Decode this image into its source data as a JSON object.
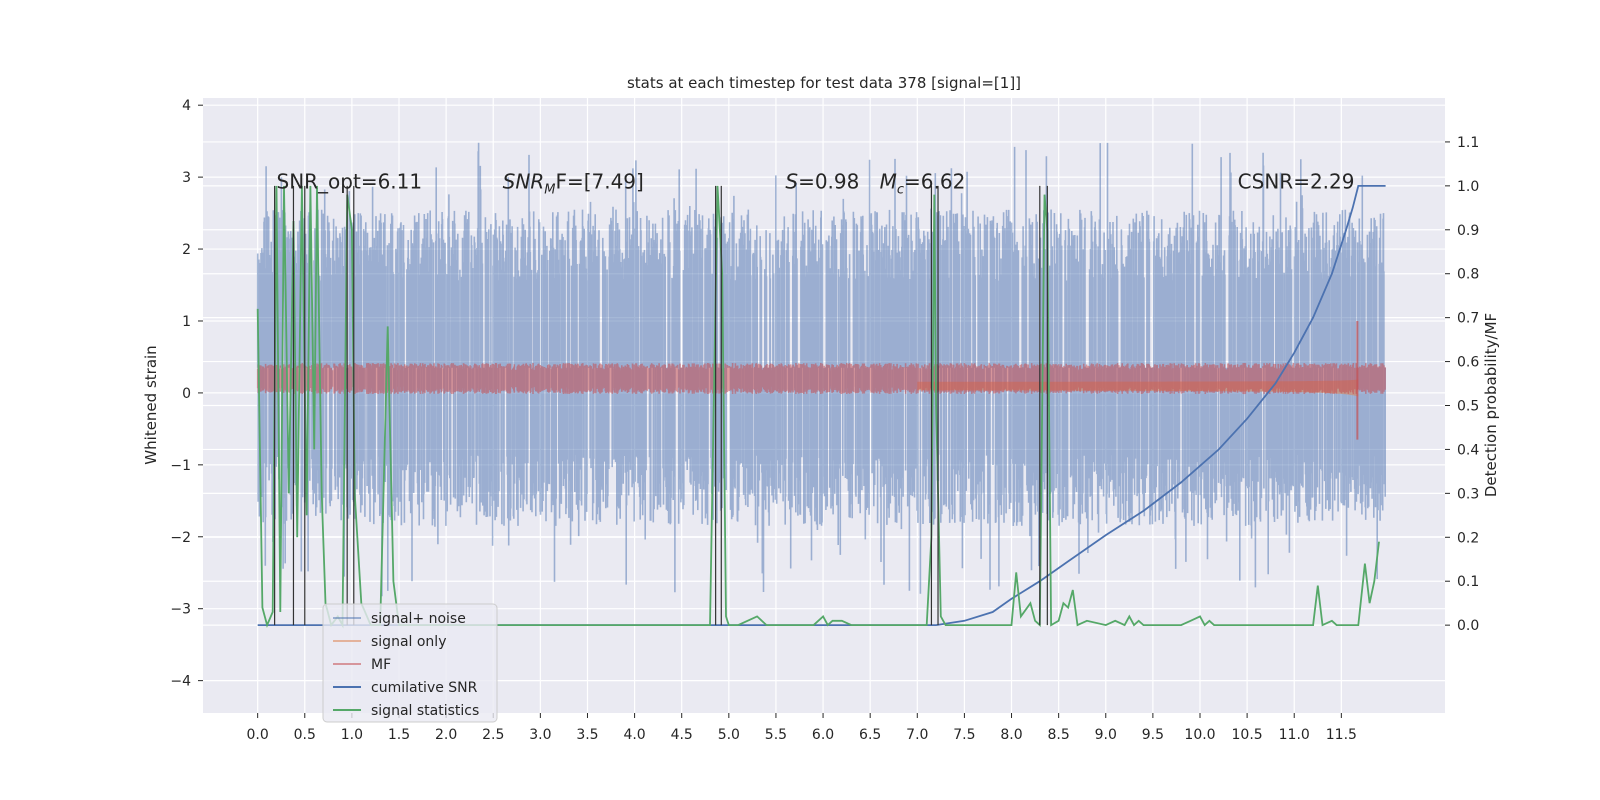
{
  "chart_data": {
    "type": "line",
    "title": "stats at each timestep for test data 378 [signal=[1]]",
    "ylabel": "Whitened strain",
    "ylabel_right": "Detection probability/MF",
    "xlim": [
      -0.58,
      12.6
    ],
    "ylim": [
      -4.45,
      4.1
    ],
    "ylim_right": [
      -0.2,
      1.2
    ],
    "xticks": [
      0.0,
      0.5,
      1.0,
      1.5,
      2.0,
      2.5,
      3.0,
      3.5,
      4.0,
      4.5,
      5.0,
      5.5,
      6.0,
      6.5,
      7.0,
      7.5,
      8.0,
      8.5,
      9.0,
      9.5,
      10.0,
      10.5,
      11.0,
      11.5
    ],
    "xtick_labels": [
      "0.0",
      "0.5",
      "1.0",
      "1.5",
      "2.0",
      "2.5",
      "3.0",
      "3.5",
      "4.0",
      "4.5",
      "5.0",
      "5.5",
      "6.0",
      "6.5",
      "7.0",
      "7.5",
      "8.0",
      "8.5",
      "9.0",
      "9.5",
      "10.0",
      "10.5",
      "11.0",
      "11.5"
    ],
    "yticks": [
      -4,
      -3,
      -2,
      -1,
      0,
      1,
      2,
      3,
      4
    ],
    "ytick_labels": [
      "−4",
      "−3",
      "−2",
      "−1",
      "0",
      "1",
      "2",
      "3",
      "4"
    ],
    "yticks_right": [
      0.0,
      0.1,
      0.2,
      0.3,
      0.4,
      0.5,
      0.6,
      0.7,
      0.8,
      0.9,
      1.0,
      1.1
    ],
    "ytick_labels_right": [
      "0.0",
      "0.1",
      "0.2",
      "0.3",
      "0.4",
      "0.5",
      "0.6",
      "0.7",
      "0.8",
      "0.9",
      "1.0",
      "1.1"
    ],
    "grid": true,
    "legend_position": "lower-left",
    "annotations": [
      {
        "x": 0.2,
        "y": 2.95,
        "text": "SNR_opt=6.11"
      },
      {
        "x": 2.6,
        "y": 2.95,
        "text": "SNR",
        "sub": "M",
        "rest": "F=[7.49]"
      },
      {
        "x": 5.6,
        "y": 2.95,
        "text": "S",
        "rest": "=0.98"
      },
      {
        "x": 6.6,
        "y": 2.95,
        "text": "M",
        "sub": "c",
        "rest": "=6.62"
      },
      {
        "x": 10.4,
        "y": 2.95,
        "text": "CSNR=2.29"
      }
    ],
    "series": [
      {
        "name": "signal+ noise",
        "color": "#4c72b0",
        "opacity": 0.5,
        "kind": "noise",
        "envelope": 2.2,
        "x_range": [
          0.0,
          11.97
        ]
      },
      {
        "name": "signal only",
        "color": "#dd8452",
        "opacity": 0.55,
        "kind": "chirp",
        "x_range": [
          0.0,
          11.68
        ]
      },
      {
        "name": "MF",
        "color": "#c44e52",
        "opacity": 0.55,
        "kind": "band",
        "center": 0.2,
        "halfwidth": 0.18,
        "x_range": [
          0.0,
          11.97
        ]
      },
      {
        "name": "cumilative SNR",
        "color": "#4c72b0",
        "axis": "right",
        "x": [
          0.0,
          7.2,
          7.5,
          7.8,
          8.0,
          8.3,
          8.6,
          9.0,
          9.4,
          9.8,
          10.2,
          10.5,
          10.8,
          11.0,
          11.2,
          11.4,
          11.55,
          11.62,
          11.68,
          11.97
        ],
        "values": [
          0.0,
          0.0,
          0.01,
          0.03,
          0.06,
          0.1,
          0.145,
          0.205,
          0.26,
          0.325,
          0.4,
          0.47,
          0.55,
          0.62,
          0.7,
          0.8,
          0.9,
          0.95,
          1.0,
          1.0
        ]
      },
      {
        "name": "signal statistics",
        "color": "#55a868",
        "axis": "right",
        "x": [
          0.0,
          0.05,
          0.1,
          0.16,
          0.2,
          0.24,
          0.28,
          0.33,
          0.38,
          0.42,
          0.47,
          0.52,
          0.56,
          0.6,
          0.63,
          0.68,
          0.72,
          0.78,
          0.85,
          0.9,
          0.95,
          1.0,
          1.03,
          1.1,
          1.2,
          1.3,
          1.38,
          1.44,
          1.5,
          1.7,
          4.8,
          4.88,
          4.93,
          4.97,
          5.0,
          5.1,
          5.3,
          5.4,
          5.6,
          5.9,
          6.0,
          6.05,
          6.1,
          6.2,
          6.3,
          7.1,
          7.15,
          7.18,
          7.2,
          7.25,
          7.3,
          7.8,
          8.0,
          8.05,
          8.1,
          8.2,
          8.25,
          8.3,
          8.35,
          8.38,
          8.42,
          8.5,
          8.55,
          8.6,
          8.65,
          8.7,
          8.8,
          9.0,
          9.1,
          9.2,
          9.25,
          9.3,
          9.35,
          9.4,
          9.5,
          9.8,
          9.9,
          10.0,
          10.05,
          10.1,
          10.15,
          10.2,
          10.3,
          11.2,
          11.25,
          11.3,
          11.4,
          11.45,
          11.6,
          11.68,
          11.75,
          11.8,
          11.85,
          11.9
        ],
        "values": [
          0.72,
          0.04,
          0.0,
          0.03,
          1.0,
          0.03,
          1.0,
          0.3,
          0.92,
          0.2,
          1.0,
          0.25,
          1.0,
          0.4,
          1.0,
          0.3,
          0.05,
          0.0,
          0.02,
          0.0,
          0.98,
          0.9,
          0.3,
          0.05,
          0.0,
          0.0,
          0.68,
          0.1,
          0.0,
          0.0,
          0.0,
          1.0,
          0.8,
          0.02,
          0.0,
          0.0,
          0.02,
          0.0,
          0.0,
          0.0,
          0.02,
          0.0,
          0.01,
          0.01,
          0.0,
          0.0,
          0.2,
          0.98,
          0.5,
          0.02,
          0.0,
          0.0,
          0.0,
          0.12,
          0.02,
          0.05,
          0.01,
          0.0,
          0.98,
          0.9,
          0.0,
          0.01,
          0.05,
          0.04,
          0.08,
          0.0,
          0.01,
          0.0,
          0.01,
          0.0,
          0.02,
          0.0,
          0.01,
          0.0,
          0.0,
          0.0,
          0.01,
          0.02,
          0.0,
          0.01,
          0.0,
          0.0,
          0.0,
          0.0,
          0.09,
          0.0,
          0.01,
          0.0,
          0.0,
          0.0,
          0.14,
          0.05,
          0.1,
          0.19
        ]
      }
    ],
    "vlines": [
      0.18,
      0.38,
      0.5,
      0.95,
      1.02,
      4.86,
      4.92,
      7.15,
      7.22,
      8.3,
      8.38
    ],
    "vlines_color": "#333333"
  }
}
